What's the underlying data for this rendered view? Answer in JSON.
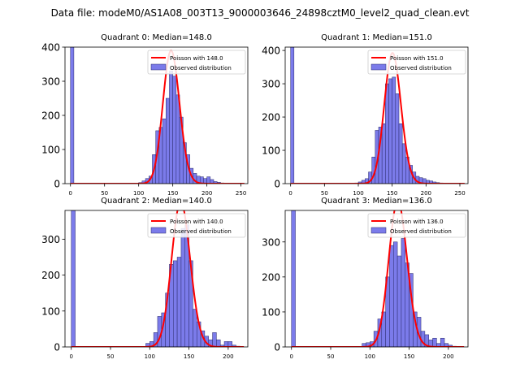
{
  "suptitle": "Data file: modeM0/AS1A08_003T13_9000003646_24898cztM0_level2_quad_clean.evt",
  "legend_observed": "Observed distribution",
  "colors": {
    "bar_fill": "#7b7bea",
    "bar_edge": "#2a2a6a",
    "poisson": "#ff0000"
  },
  "chart_data": [
    {
      "type": "bar",
      "title": "Quadrant 0: Median=148.0",
      "median": 148.0,
      "poisson_label": "Poisson with 148.0",
      "xlim": [
        -8,
        260
      ],
      "ylim": [
        0,
        400
      ],
      "xticks": [
        0,
        50,
        100,
        150,
        200,
        250
      ],
      "yticks": [
        0,
        100,
        200,
        300,
        400
      ],
      "bin_width": 5,
      "zero_bin_height": 400,
      "bins_start": [
        100,
        105,
        110,
        115,
        120,
        125,
        130,
        135,
        140,
        145,
        150,
        155,
        160,
        165,
        170,
        175,
        180,
        185,
        190,
        195,
        200,
        205,
        210,
        215,
        220,
        225,
        230,
        235,
        240,
        245
      ],
      "values": [
        3,
        8,
        15,
        22,
        85,
        155,
        165,
        190,
        250,
        330,
        315,
        260,
        195,
        120,
        85,
        45,
        30,
        22,
        20,
        15,
        20,
        12,
        6,
        4,
        2,
        1,
        1,
        0,
        0,
        1
      ]
    },
    {
      "type": "bar",
      "title": "Quadrant 1: Median=151.0",
      "median": 151.0,
      "poisson_label": "Poisson with 151.0",
      "xlim": [
        -8,
        262
      ],
      "ylim": [
        0,
        410
      ],
      "xticks": [
        0,
        50,
        100,
        150,
        200,
        250
      ],
      "yticks": [
        0,
        100,
        200,
        300,
        400
      ],
      "bin_width": 5,
      "zero_bin_height": 410,
      "bins_start": [
        95,
        100,
        105,
        110,
        115,
        120,
        125,
        130,
        135,
        140,
        145,
        150,
        155,
        160,
        165,
        170,
        175,
        180,
        185,
        190,
        195,
        200,
        205,
        210,
        215,
        220,
        225,
        230,
        235,
        240
      ],
      "values": [
        2,
        5,
        10,
        15,
        35,
        80,
        160,
        170,
        180,
        300,
        315,
        320,
        270,
        180,
        120,
        80,
        55,
        35,
        22,
        18,
        15,
        10,
        8,
        5,
        3,
        2,
        1,
        1,
        1,
        0
      ]
    },
    {
      "type": "bar",
      "title": "Quadrant 2: Median=140.0",
      "median": 140.0,
      "poisson_label": "Poisson with 140.0",
      "xlim": [
        -8,
        225
      ],
      "ylim": [
        0,
        380
      ],
      "xticks": [
        0,
        50,
        100,
        150,
        200
      ],
      "yticks": [
        0,
        100,
        200,
        300
      ],
      "bin_width": 5,
      "zero_bin_height": 380,
      "bins_start": [
        95,
        100,
        105,
        110,
        115,
        120,
        125,
        130,
        135,
        140,
        145,
        150,
        155,
        160,
        165,
        170,
        175,
        180,
        185,
        190,
        195,
        200,
        205,
        210
      ],
      "values": [
        10,
        15,
        40,
        85,
        95,
        150,
        230,
        240,
        250,
        330,
        340,
        240,
        105,
        70,
        45,
        30,
        20,
        40,
        20,
        5,
        15,
        15,
        5,
        2
      ]
    },
    {
      "type": "bar",
      "title": "Quadrant 3: Median=136.0",
      "median": 136.0,
      "poisson_label": "Poisson with 136.0",
      "xlim": [
        -8,
        225
      ],
      "ylim": [
        0,
        390
      ],
      "xticks": [
        0,
        50,
        100,
        150,
        200
      ],
      "yticks": [
        0,
        100,
        200,
        300
      ],
      "bin_width": 5,
      "zero_bin_height": 390,
      "bins_start": [
        90,
        95,
        100,
        105,
        110,
        115,
        120,
        125,
        130,
        135,
        140,
        145,
        150,
        155,
        160,
        165,
        170,
        175,
        180,
        185,
        190,
        195,
        200,
        205
      ],
      "values": [
        10,
        12,
        15,
        45,
        80,
        100,
        200,
        290,
        300,
        260,
        310,
        240,
        210,
        100,
        85,
        45,
        35,
        20,
        25,
        10,
        25,
        10,
        5,
        2
      ]
    }
  ]
}
